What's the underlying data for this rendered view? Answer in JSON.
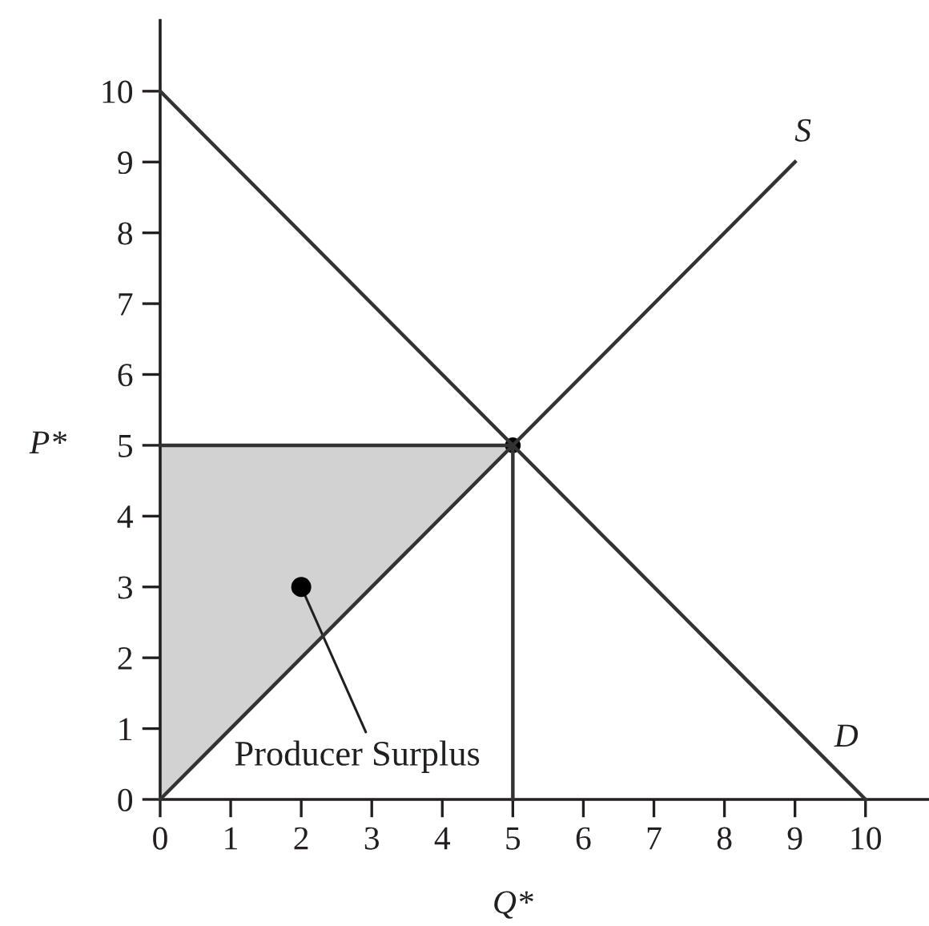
{
  "chart_data": {
    "type": "line",
    "xlim": [
      0,
      10.9
    ],
    "ylim": [
      0,
      11
    ],
    "xticks": [
      0,
      1,
      2,
      3,
      4,
      5,
      6,
      7,
      8,
      9,
      10
    ],
    "yticks": [
      0,
      1,
      2,
      3,
      4,
      5,
      6,
      7,
      8,
      9,
      10
    ],
    "series": [
      {
        "name": "S",
        "x": [
          0,
          9
        ],
        "values": [
          0,
          9
        ],
        "color": "#333333"
      },
      {
        "name": "D",
        "x": [
          0,
          10
        ],
        "values": [
          10,
          0
        ],
        "color": "#333333"
      },
      {
        "x": [
          0,
          5
        ],
        "values": [
          5,
          5
        ],
        "lower": [
          0,
          5
        ],
        "upper": [
          5,
          5
        ],
        "color": "#333333"
      },
      {
        "x": [
          5,
          5
        ],
        "values": [
          5,
          0
        ],
        "color": "#333333"
      },
      {
        "type": "scatter",
        "x": [
          5
        ],
        "values": [
          5
        ],
        "color": "#000000",
        "marker": "circle"
      }
    ],
    "annotations": [
      {
        "text": "Producer Surplus",
        "x": 2,
        "y": 3
      },
      {
        "text": "P*",
        "x": 0,
        "y": 5
      },
      {
        "text": "Q*",
        "x": 5,
        "y": 0
      }
    ]
  }
}
